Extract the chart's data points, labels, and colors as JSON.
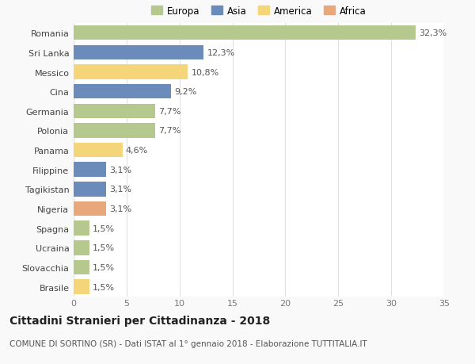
{
  "categories": [
    "Romania",
    "Sri Lanka",
    "Messico",
    "Cina",
    "Germania",
    "Polonia",
    "Panama",
    "Filippine",
    "Tagikistan",
    "Nigeria",
    "Spagna",
    "Ucraina",
    "Slovacchia",
    "Brasile"
  ],
  "values": [
    32.3,
    12.3,
    10.8,
    9.2,
    7.7,
    7.7,
    4.6,
    3.1,
    3.1,
    3.1,
    1.5,
    1.5,
    1.5,
    1.5
  ],
  "labels": [
    "32,3%",
    "12,3%",
    "10,8%",
    "9,2%",
    "7,7%",
    "7,7%",
    "4,6%",
    "3,1%",
    "3,1%",
    "3,1%",
    "1,5%",
    "1,5%",
    "1,5%",
    "1,5%"
  ],
  "colors": [
    "#b5c98e",
    "#6b8cba",
    "#f5d57a",
    "#6b8cba",
    "#b5c98e",
    "#b5c98e",
    "#f5d57a",
    "#6b8cba",
    "#6b8cba",
    "#e8a87c",
    "#b5c98e",
    "#b5c98e",
    "#b5c98e",
    "#f5d57a"
  ],
  "legend": {
    "labels": [
      "Europa",
      "Asia",
      "America",
      "Africa"
    ],
    "colors": [
      "#b5c98e",
      "#6b8cba",
      "#f5d57a",
      "#e8a87c"
    ]
  },
  "xlim": [
    0,
    35
  ],
  "xticks": [
    0,
    5,
    10,
    15,
    20,
    25,
    30,
    35
  ],
  "title": "Cittadini Stranieri per Cittadinanza - 2018",
  "subtitle": "COMUNE DI SORTINO (SR) - Dati ISTAT al 1° gennaio 2018 - Elaborazione TUTTITALIA.IT",
  "background_color": "#f9f9f9",
  "bar_background": "#ffffff",
  "grid_color": "#e0e0e0",
  "title_fontsize": 10,
  "subtitle_fontsize": 7.5,
  "label_fontsize": 8,
  "tick_fontsize": 8,
  "value_fontsize": 8,
  "legend_fontsize": 8.5
}
